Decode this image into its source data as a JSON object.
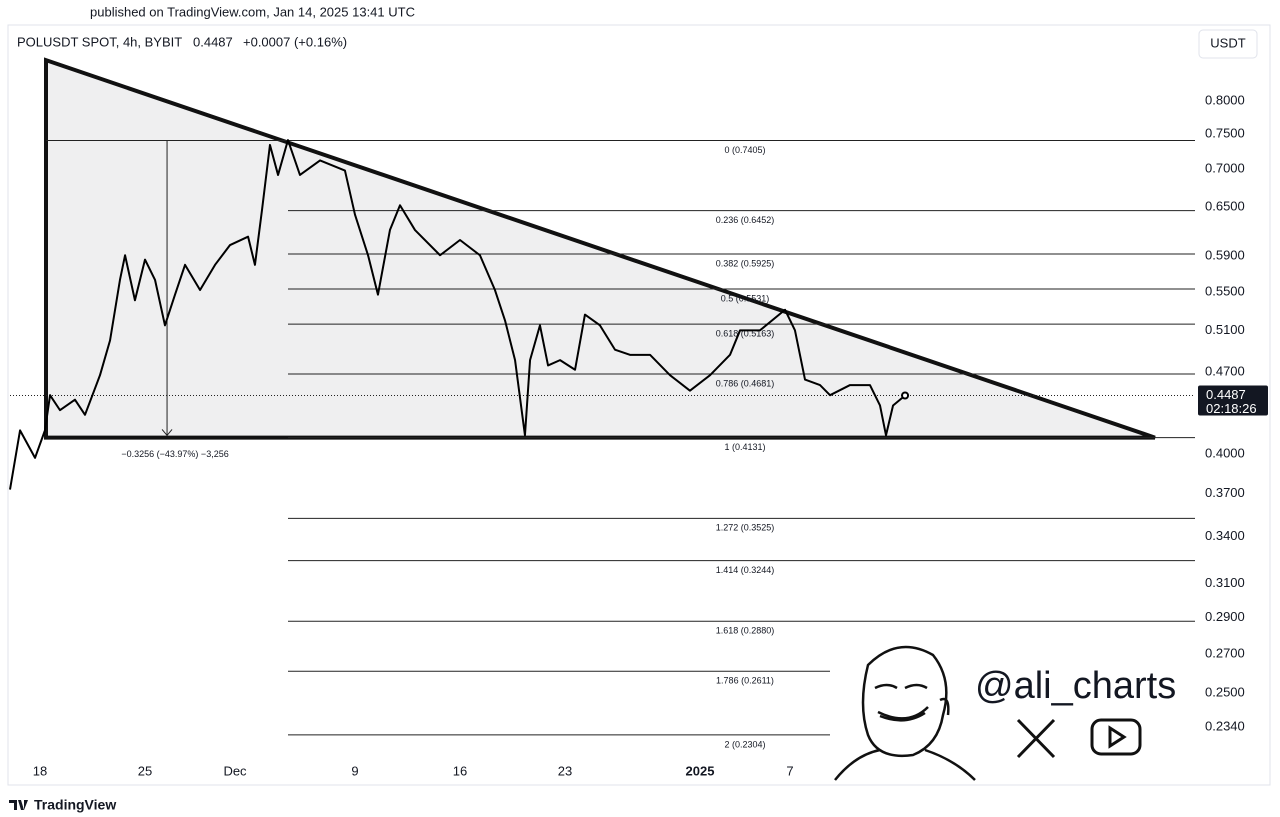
{
  "header": {
    "published": "published on TradingView.com, Jan 14, 2025 13:41 UTC"
  },
  "chart_data": {
    "type": "line",
    "title": "POLUSDT SPOT, 4h, BYBIT",
    "price": "0.4487",
    "change": "+0.0007 (+0.16%)",
    "currency": "USDT",
    "log_scale": true,
    "color": "#000000",
    "xlim": [
      -2,
      77
    ],
    "xticks": [
      {
        "value": 0,
        "label": "18"
      },
      {
        "value": 7,
        "label": "25"
      },
      {
        "value": 13,
        "label": "Dec"
      },
      {
        "value": 21,
        "label": "9"
      },
      {
        "value": 28,
        "label": "16"
      },
      {
        "value": 35,
        "label": "23"
      },
      {
        "value": 44,
        "label": "2025"
      },
      {
        "value": 50,
        "label": "7"
      }
    ],
    "ylim": [
      0.2088,
      0.902
    ],
    "yticks": [
      {
        "value": 0.8,
        "label": "0.8000"
      },
      {
        "value": 0.75,
        "label": "0.7500"
      },
      {
        "value": 0.7,
        "label": "0.7000"
      },
      {
        "value": 0.65,
        "label": "0.6500"
      },
      {
        "value": 0.59,
        "label": "0.5900"
      },
      {
        "value": 0.55,
        "label": "0.5500"
      },
      {
        "value": 0.51,
        "label": "0.5100"
      },
      {
        "value": 0.47,
        "label": "0.4700"
      },
      {
        "value": 0.4,
        "label": "0.4000"
      },
      {
        "value": 0.37,
        "label": "0.3700"
      },
      {
        "value": 0.34,
        "label": "0.3400"
      },
      {
        "value": 0.31,
        "label": "0.3100"
      },
      {
        "value": 0.29,
        "label": "0.2900"
      },
      {
        "value": 0.27,
        "label": "0.2700"
      },
      {
        "value": 0.25,
        "label": "0.2500"
      },
      {
        "value": 0.234,
        "label": "0.2340"
      }
    ],
    "x": [
      -2,
      -1.33,
      -0.33,
      0.33,
      0.67,
      1.33,
      2.33,
      3,
      4,
      4.67,
      5.33,
      5.67,
      6.33,
      7,
      7.67,
      8.33,
      9,
      9.67,
      10.67,
      11.67,
      12.67,
      13.87,
      14.33,
      14.8,
      15.33,
      15.87,
      16.53,
      17.33,
      18.67,
      20.33,
      21,
      21.87,
      22.53,
      23.33,
      24,
      25,
      26.67,
      28,
      29.33,
      30.33,
      31,
      31.67,
      32.33,
      32.67,
      33.33,
      33.87,
      34.67,
      35.67,
      36.33,
      37.33,
      38.33,
      39.33,
      40.67,
      42,
      43.33,
      44.67,
      46,
      46.67,
      48,
      49.67,
      50.33,
      51,
      52,
      52.67,
      54,
      55.33,
      56,
      56.4,
      56.87,
      57.67
    ],
    "values": [
      0.373,
      0.419,
      0.397,
      0.419,
      0.449,
      0.436,
      0.445,
      0.432,
      0.467,
      0.5,
      0.563,
      0.591,
      0.541,
      0.586,
      0.563,
      0.515,
      0.547,
      0.58,
      0.552,
      0.58,
      0.603,
      0.613,
      0.58,
      0.646,
      0.734,
      0.692,
      0.741,
      0.692,
      0.712,
      0.698,
      0.64,
      0.591,
      0.547,
      0.621,
      0.652,
      0.621,
      0.591,
      0.609,
      0.591,
      0.552,
      0.52,
      0.481,
      0.415,
      0.481,
      0.515,
      0.476,
      0.481,
      0.472,
      0.526,
      0.515,
      0.491,
      0.486,
      0.486,
      0.467,
      0.453,
      0.467,
      0.486,
      0.51,
      0.51,
      0.531,
      0.51,
      0.463,
      0.458,
      0.449,
      0.458,
      0.458,
      0.44,
      0.415,
      0.44,
      0.4487
    ],
    "last_price_label": {
      "value": 0.4487,
      "price": "0.4487",
      "countdown": "02:18:26"
    },
    "fib_levels": [
      {
        "value": 0.7405,
        "label": "0 (0.7405)"
      },
      {
        "value": 0.6452,
        "label": "0.236 (0.6452)"
      },
      {
        "value": 0.5925,
        "label": "0.382 (0.5925)"
      },
      {
        "value": 0.5531,
        "label": "0.5 (0.5531)"
      },
      {
        "value": 0.5163,
        "label": "0.618 (0.5163)"
      },
      {
        "value": 0.4681,
        "label": "0.786 (0.4681)"
      },
      {
        "value": 0.4131,
        "label": "1 (0.4131)"
      },
      {
        "value": 0.3525,
        "label": "1.272 (0.3525)"
      },
      {
        "value": 0.3244,
        "label": "1.414 (0.3244)"
      },
      {
        "value": 0.288,
        "label": "1.618 (0.2880)"
      },
      {
        "value": 0.2611,
        "label": "1.786 (0.2611)"
      },
      {
        "value": 0.2304,
        "label": "2 (0.2304)"
      }
    ],
    "measure": {
      "x": 8.47,
      "from": 0.7405,
      "to": 0.4149,
      "label": "−0.3256 (−43.97%) −3,256"
    },
    "triangle": {
      "x": [
        0.4,
        0.4,
        74.33
      ],
      "values": [
        0.867,
        0.4131,
        0.4131
      ]
    }
  },
  "watermark": "@ali_charts",
  "footer": "TradingView"
}
